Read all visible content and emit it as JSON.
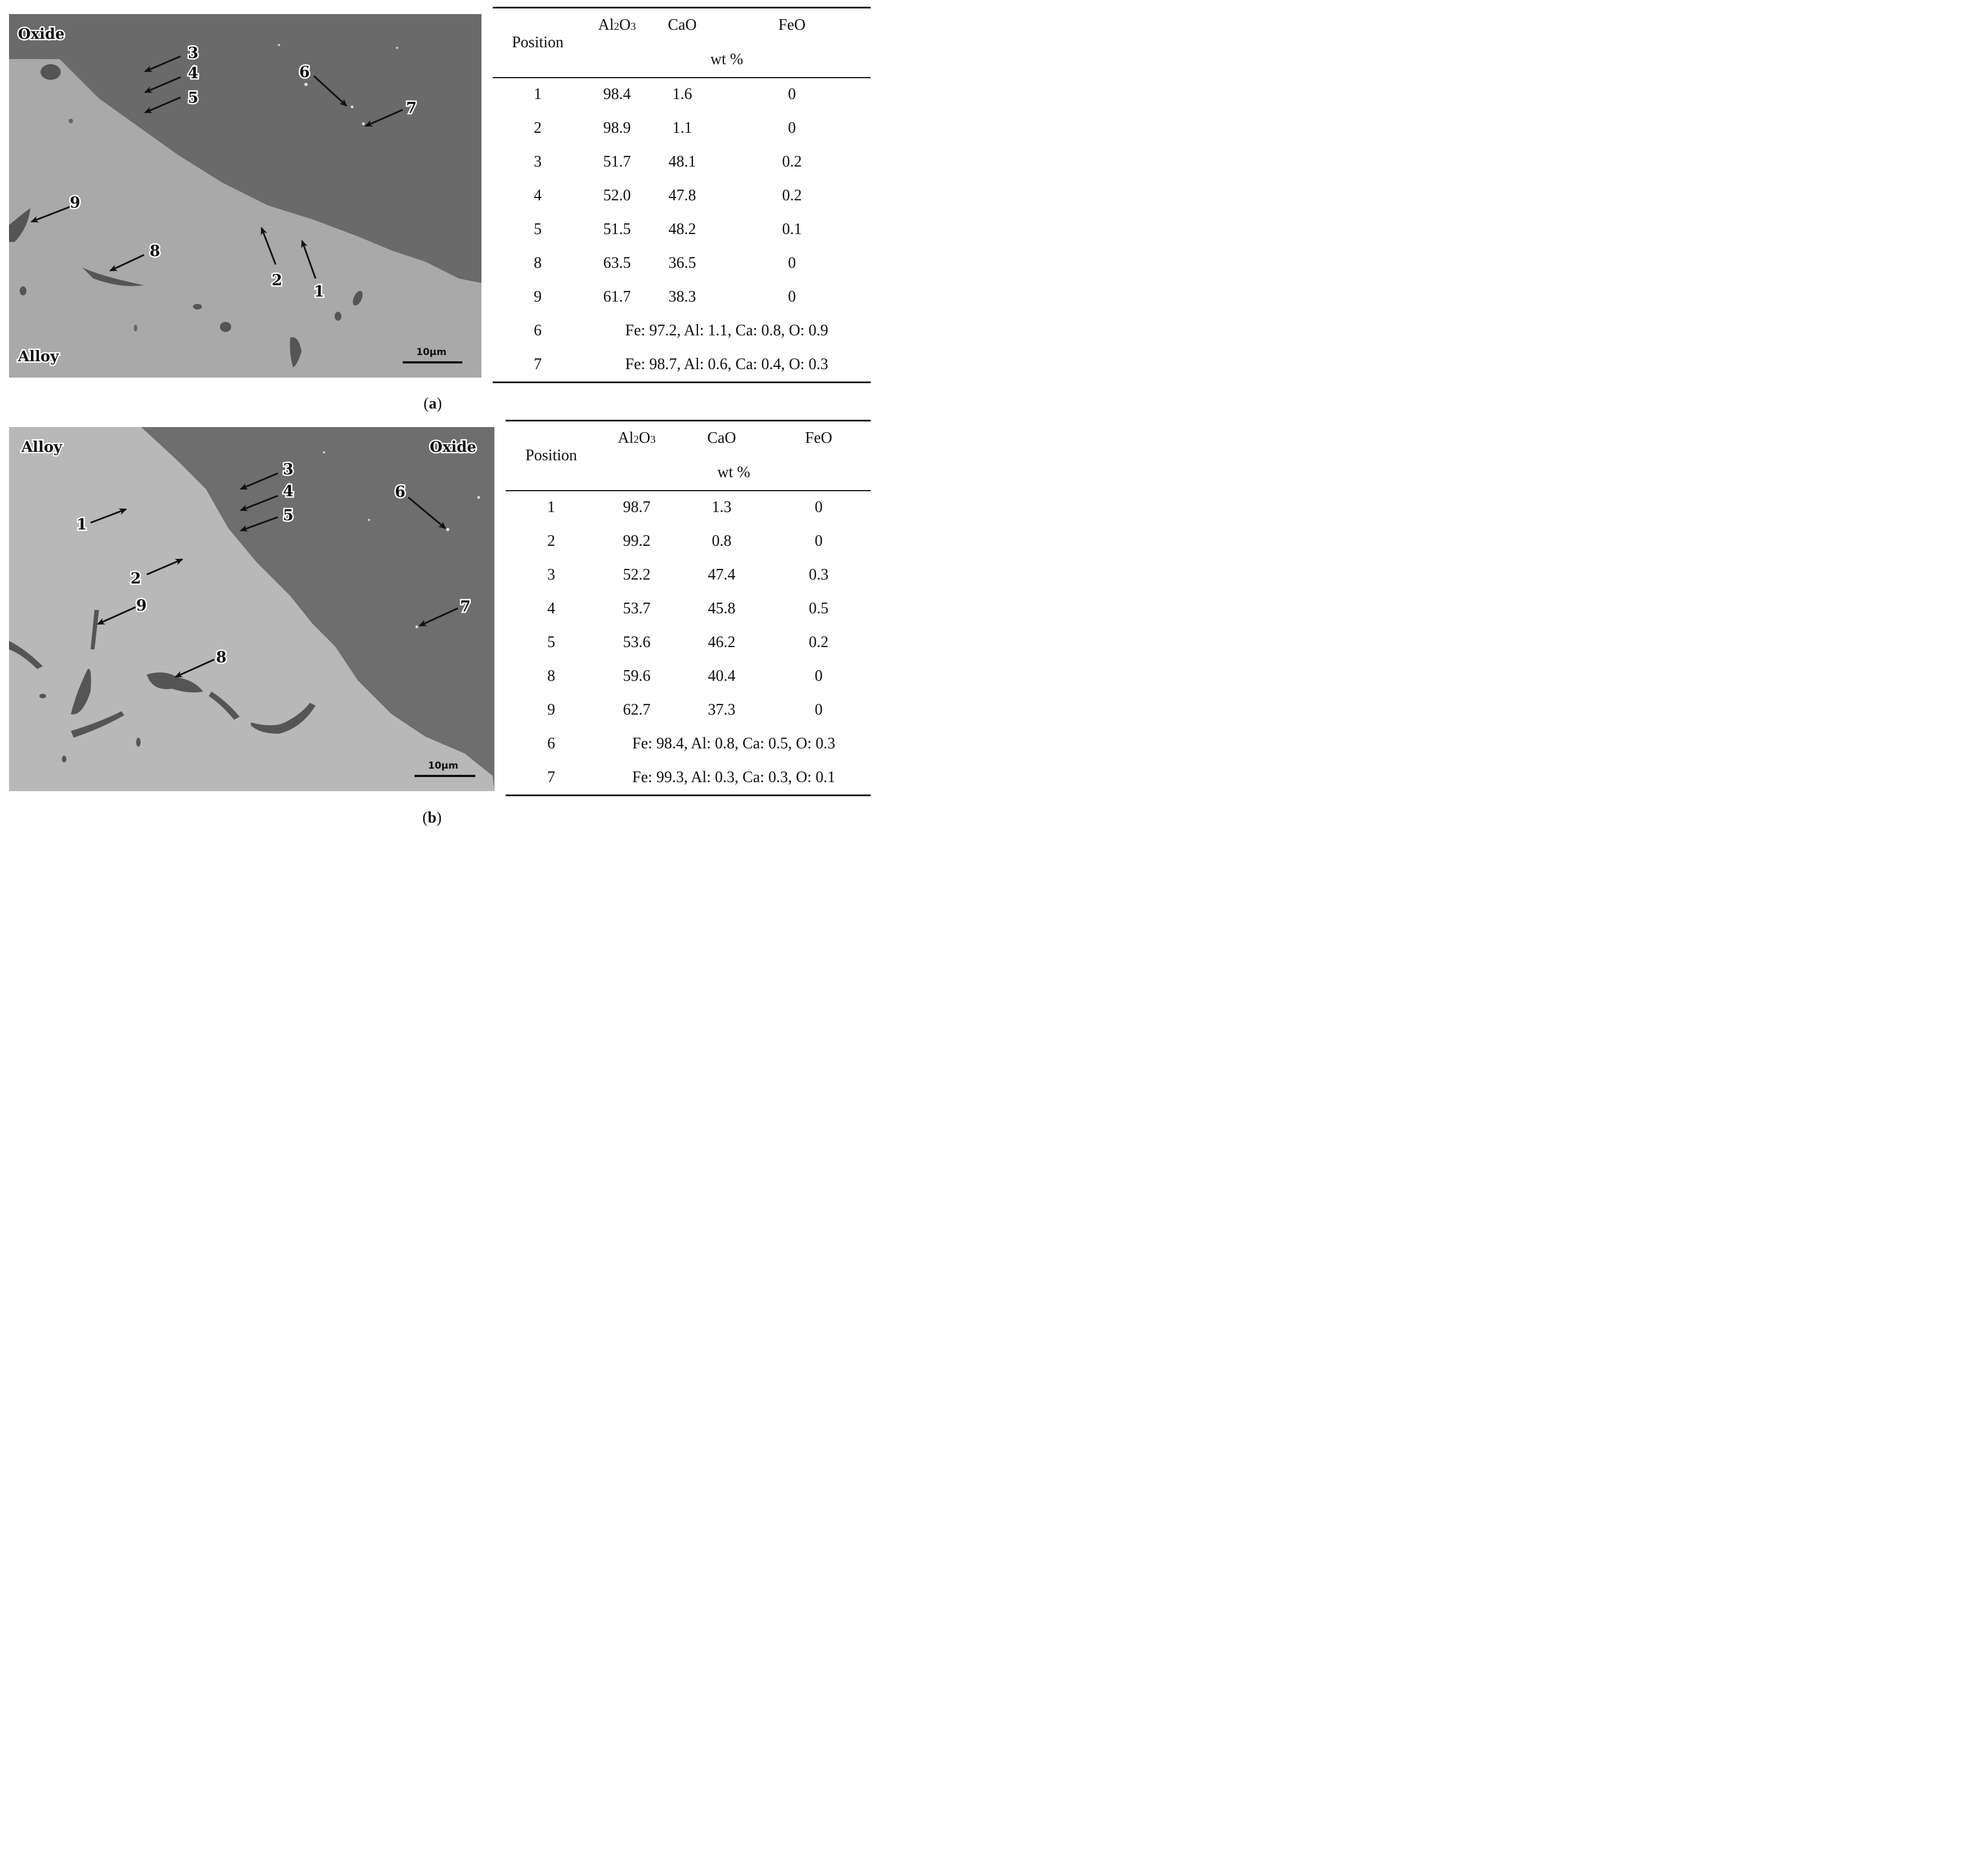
{
  "panel_a": {
    "caption_letter": "a",
    "sem": {
      "top_label": "Oxide",
      "bottom_label": "Alloy",
      "scale_bar": "10µm"
    },
    "table": {
      "header": {
        "position": "Position",
        "c1_main": "Al",
        "c1_sub1": "2",
        "c1_mid": "O",
        "c1_sub2": "3",
        "c2": "CaO",
        "c3": "FeO",
        "unit": "wt %"
      },
      "rows": [
        {
          "pos": "1",
          "al2o3": "98.4",
          "cao": "1.6",
          "feo": "0"
        },
        {
          "pos": "2",
          "al2o3": "98.9",
          "cao": "1.1",
          "feo": "0"
        },
        {
          "pos": "3",
          "al2o3": "51.7",
          "cao": "48.1",
          "feo": "0.2"
        },
        {
          "pos": "4",
          "al2o3": "52.0",
          "cao": "47.8",
          "feo": "0.2"
        },
        {
          "pos": "5",
          "al2o3": "51.5",
          "cao": "48.2",
          "feo": "0.1"
        },
        {
          "pos": "8",
          "al2o3": "63.5",
          "cao": "36.5",
          "feo": "0"
        },
        {
          "pos": "9",
          "al2o3": "61.7",
          "cao": "38.3",
          "feo": "0"
        }
      ],
      "span_rows": [
        {
          "pos": "6",
          "text": "Fe: 97.2, Al: 1.1, Ca: 0.8, O: 0.9"
        },
        {
          "pos": "7",
          "text": "Fe: 98.7, Al: 0.6, Ca: 0.4, O: 0.3"
        }
      ]
    }
  },
  "panel_b": {
    "caption_letter": "b",
    "sem": {
      "top_label": "Alloy",
      "right_label": "Oxide",
      "scale_bar": "10µm"
    },
    "table": {
      "header": {
        "position": "Position",
        "c1_main": "Al",
        "c1_sub1": "2",
        "c1_mid": "O",
        "c1_sub2": "3",
        "c2": "CaO",
        "c3": "FeO",
        "unit": "wt %"
      },
      "rows": [
        {
          "pos": "1",
          "al2o3": "98.7",
          "cao": "1.3",
          "feo": "0"
        },
        {
          "pos": "2",
          "al2o3": "99.2",
          "cao": "0.8",
          "feo": "0"
        },
        {
          "pos": "3",
          "al2o3": "52.2",
          "cao": "47.4",
          "feo": "0.3"
        },
        {
          "pos": "4",
          "al2o3": "53.7",
          "cao": "45.8",
          "feo": "0.5"
        },
        {
          "pos": "5",
          "al2o3": "53.6",
          "cao": "46.2",
          "feo": "0.2"
        },
        {
          "pos": "8",
          "al2o3": "59.6",
          "cao": "40.4",
          "feo": "0"
        },
        {
          "pos": "9",
          "al2o3": "62.7",
          "cao": "37.3",
          "feo": "0"
        }
      ],
      "span_rows": [
        {
          "pos": "6",
          "text": "Fe: 98.4, Al: 0.8, Ca: 0.5, O: 0.3"
        },
        {
          "pos": "7",
          "text": "Fe: 99.3, Al: 0.3, Ca: 0.3, O: 0.1"
        }
      ]
    }
  }
}
